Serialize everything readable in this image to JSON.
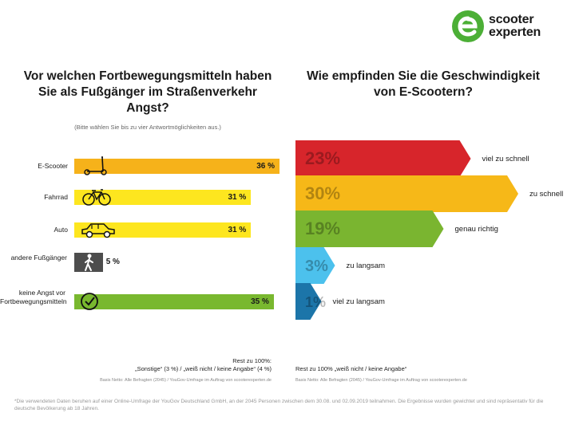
{
  "brand": {
    "name_line1": "scooter",
    "name_line2": "experten",
    "color": "#4caf36"
  },
  "left": {
    "title": "Vor welchen  Fortbewegungsmitteln haben Sie als Fußgänger im Straßenverkehr Angst?",
    "subtitle": "(Bitte wählen Sie bis zu vier Antwortmöglichkeiten aus.)",
    "rest_title": "Rest zu 100%:",
    "rest_detail": "„Sonstige“ (3 %) / „weiß nicht / keine Angabe“ (4 %)",
    "basis": "Basis Netto: Alle Befragten (2045) / YouGov-Umfrage im Auftrag von scooterexperten.de"
  },
  "right": {
    "title": "Wie empfinden Sie die Geschwindigkeit von E-Scootern?",
    "rest": "Rest zu 100% „weiß nicht / keine Angabe“",
    "basis": "Basis Netto: Alle Befragten (2045) / YouGov-Umfrage im Auftrag von scooterexperten.de"
  },
  "disclaimer": "*Die verwendeten Daten beruhen auf einer Online-Umfrage der YouGov Deutschland GmbH, an der 2045 Personen zwischen dem 30.08. und 02.09.2019 teilnahmen. Die Ergebnisse wurden gewichtet und sind repräsentativ für die deutsche Bevölkerung ab 18 Jahren.",
  "chart_data": [
    {
      "type": "bar",
      "orientation": "horizontal",
      "title": "Vor welchen  Fortbewegungsmitteln haben Sie als Fußgänger im Straßenverkehr Angst?",
      "categories": [
        "E-Scooter",
        "Fahrrad",
        "Auto",
        "andere Fußgänger",
        "keine Angst vor Fortbewegungsmitteln"
      ],
      "values": [
        36,
        31,
        31,
        5,
        35
      ],
      "labels": [
        "36 %",
        "31 %",
        "31 %",
        "5 %",
        "35 %"
      ],
      "icons": [
        "kick-scooter-icon",
        "bicycle-icon",
        "car-icon",
        "pedestrian-icon",
        "checkmark-circle-icon"
      ],
      "colors": [
        "#f6b21a",
        "#fde61f",
        "#fde61f",
        "#4d4d4d",
        "#79b82f"
      ],
      "unit": "%"
    },
    {
      "type": "bar",
      "orientation": "horizontal-arrow",
      "title": "Wie empfinden Sie die Geschwindigkeit von E-Scootern?",
      "categories": [
        "viel zu schnell",
        "zu schnell",
        "genau richtig",
        "zu langsam",
        "viel zu langsam"
      ],
      "values": [
        23,
        30,
        19,
        3,
        1
      ],
      "labels": [
        "23%",
        "30%",
        "19%",
        "3%",
        "1%"
      ],
      "colors": [
        "#d7252b",
        "#f6b818",
        "#7ab530",
        "#4cc1ed",
        "#1c75a9"
      ],
      "unit": "%"
    }
  ]
}
